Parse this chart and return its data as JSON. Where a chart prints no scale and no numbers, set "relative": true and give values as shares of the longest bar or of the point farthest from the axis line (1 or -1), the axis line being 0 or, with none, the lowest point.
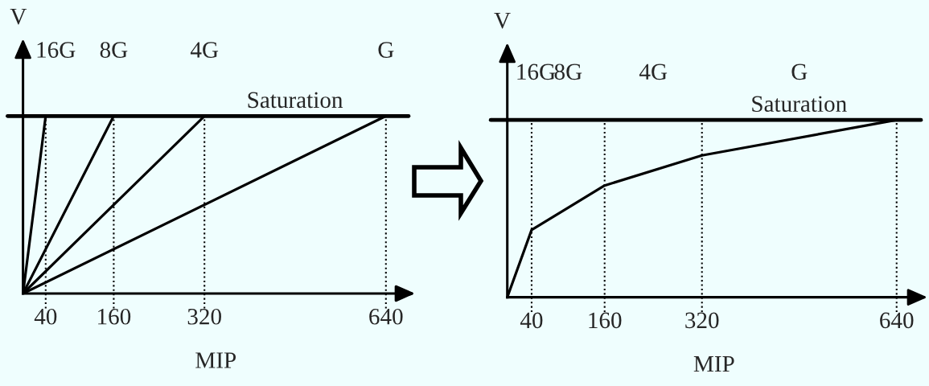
{
  "chart_data": [
    {
      "type": "line",
      "relative": true,
      "xlabel": "MIP",
      "ylabel": "V",
      "xlim": [
        0,
        680
      ],
      "xticks": [
        40,
        160,
        320,
        640
      ],
      "tick_labels": "x",
      "series": [
        {
          "color": "#000000",
          "x": [
            0,
            40
          ],
          "values": [
            0,
            1
          ]
        },
        {
          "color": "#000000",
          "x": [
            0,
            160
          ],
          "values": [
            0,
            1
          ]
        },
        {
          "color": "#000000",
          "x": [
            0,
            320
          ],
          "values": [
            0,
            1
          ]
        },
        {
          "color": "#000000",
          "x": [
            0,
            640
          ],
          "values": [
            0,
            1
          ]
        }
      ],
      "ref_lines": [
        {
          "axis": "x",
          "value": 40,
          "line_style": "dotted",
          "color": "#000000"
        },
        {
          "axis": "x",
          "value": 160,
          "line_style": "dotted",
          "color": "#000000"
        },
        {
          "axis": "x",
          "value": 320,
          "line_style": "dotted",
          "color": "#000000"
        },
        {
          "axis": "x",
          "value": 640,
          "line_style": "dotted",
          "color": "#000000"
        },
        {
          "axis": "y",
          "value": 1,
          "label": "Saturation",
          "line_style": "solid",
          "color": "#000000"
        }
      ],
      "annotations": [
        {
          "text": "16G",
          "x": 40,
          "y": 1
        },
        {
          "text": "8G",
          "x": 160,
          "y": 1
        },
        {
          "text": "4G",
          "x": 320,
          "y": 1
        },
        {
          "text": "G",
          "x": 640,
          "y": 1
        }
      ]
    },
    {
      "type": "line",
      "relative": true,
      "xlabel": "MIP",
      "ylabel": "V",
      "xlim": [
        0,
        680
      ],
      "xticks": [
        40,
        160,
        320,
        640
      ],
      "tick_labels": "x",
      "series": [
        {
          "color": "#000000",
          "x": [
            0,
            40,
            160,
            320,
            640
          ],
          "values": [
            0,
            0.38,
            0.63,
            0.8,
            1
          ]
        }
      ],
      "ref_lines": [
        {
          "axis": "x",
          "value": 40,
          "line_style": "dotted",
          "color": "#000000"
        },
        {
          "axis": "x",
          "value": 160,
          "line_style": "dotted",
          "color": "#000000"
        },
        {
          "axis": "x",
          "value": 320,
          "line_style": "dotted",
          "color": "#000000"
        },
        {
          "axis": "x",
          "value": 640,
          "line_style": "dotted",
          "color": "#000000"
        },
        {
          "axis": "y",
          "value": 1,
          "label": "Saturation",
          "line_style": "solid",
          "color": "#000000"
        }
      ],
      "annotations": [
        "16G",
        "8G",
        "4G",
        "G"
      ]
    }
  ]
}
